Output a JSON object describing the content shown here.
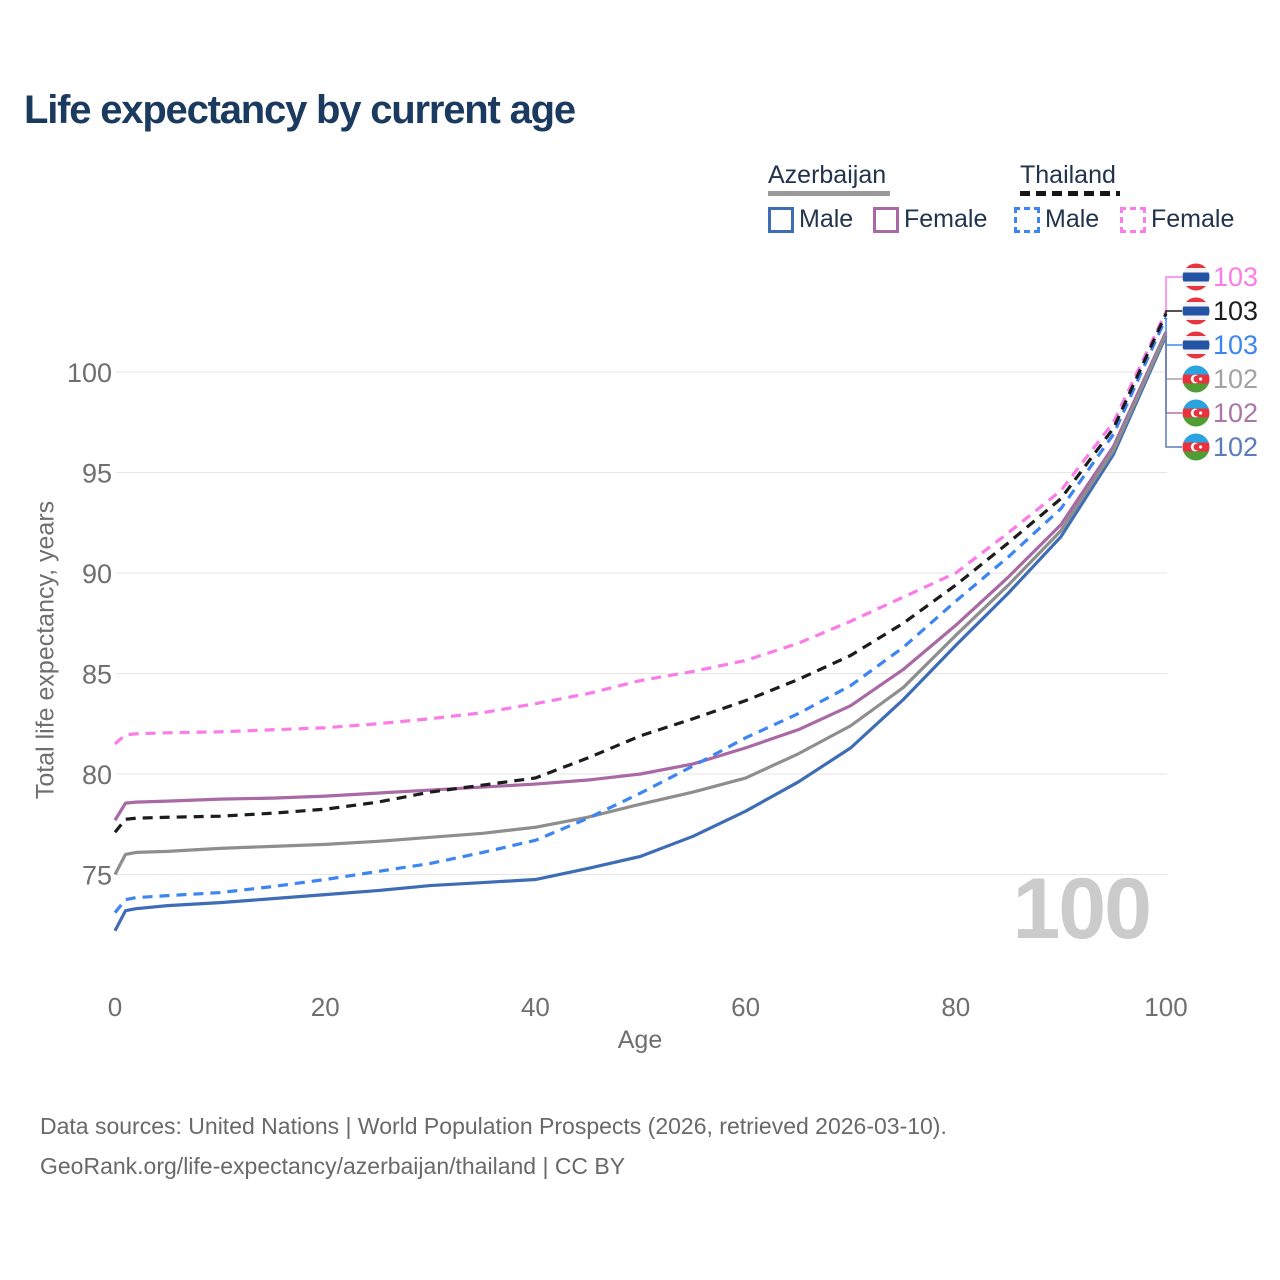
{
  "title": "Life expectancy by current age",
  "legend": {
    "groups": [
      {
        "label": "Azerbaijan",
        "line_style": "solid",
        "underline_color": "#9a9a9a",
        "items": [
          {
            "label": "Male",
            "color": "#3e6db5",
            "dashed": false
          },
          {
            "label": "Female",
            "color": "#a869a5",
            "dashed": false
          }
        ]
      },
      {
        "label": "Thailand",
        "line_style": "dashed",
        "underline_color": "#161616",
        "items": [
          {
            "label": "Male",
            "color": "#3d85f2",
            "dashed": true
          },
          {
            "label": "Female",
            "color": "#fb7ce8",
            "dashed": true
          }
        ]
      }
    ]
  },
  "chart_data": {
    "type": "line",
    "title": "Life expectancy by current age",
    "xlabel": "Age",
    "ylabel": "Total life expectancy, years",
    "xticks": [
      0,
      20,
      40,
      60,
      80,
      100
    ],
    "yticks": [
      75,
      80,
      85,
      90,
      95,
      100
    ],
    "xlim": [
      0,
      100
    ],
    "ylim": [
      72,
      103.5
    ],
    "grid": "horizontal",
    "x": [
      0,
      1,
      2,
      5,
      10,
      15,
      20,
      25,
      30,
      35,
      40,
      45,
      50,
      55,
      60,
      65,
      70,
      75,
      80,
      85,
      90,
      95,
      100
    ],
    "series": [
      {
        "id": "az_male",
        "name": "Azerbaijan — Male",
        "color": "#3e6db5",
        "dashed": false,
        "values": [
          72.2,
          73.2,
          73.3,
          73.45,
          73.6,
          73.8,
          74.0,
          74.2,
          74.45,
          74.6,
          74.75,
          75.3,
          75.9,
          76.9,
          78.15,
          79.6,
          81.3,
          83.7,
          86.4,
          89.0,
          91.8,
          95.9,
          101.8
        ]
      },
      {
        "id": "az_female",
        "name": "Azerbaijan — Female",
        "color": "#a869a5",
        "dashed": false,
        "values": [
          77.7,
          78.55,
          78.6,
          78.65,
          78.75,
          78.8,
          78.9,
          79.05,
          79.2,
          79.35,
          79.5,
          79.7,
          80.0,
          80.5,
          81.3,
          82.2,
          83.4,
          85.2,
          87.4,
          89.8,
          92.4,
          96.3,
          102.0
        ]
      },
      {
        "id": "az_both",
        "name": "Azerbaijan — Both sexes",
        "color": "#8e8e8e",
        "dashed": false,
        "values": [
          75.0,
          76.0,
          76.1,
          76.15,
          76.3,
          76.4,
          76.5,
          76.65,
          76.85,
          77.05,
          77.35,
          77.85,
          78.5,
          79.1,
          79.8,
          81.0,
          82.4,
          84.3,
          86.9,
          89.4,
          92.1,
          96.1,
          101.9
        ]
      },
      {
        "id": "th_male",
        "name": "Thailand — Male",
        "color": "#3d85f2",
        "dashed": true,
        "values": [
          73.1,
          73.75,
          73.85,
          73.95,
          74.1,
          74.4,
          74.75,
          75.15,
          75.55,
          76.1,
          76.7,
          77.8,
          79.05,
          80.4,
          81.8,
          83.0,
          84.4,
          86.3,
          88.6,
          90.8,
          93.2,
          96.9,
          102.7
        ]
      },
      {
        "id": "th_female",
        "name": "Thailand — Female",
        "color": "#fb7ce8",
        "dashed": true,
        "values": [
          81.5,
          81.95,
          82.0,
          82.05,
          82.1,
          82.2,
          82.3,
          82.5,
          82.75,
          83.05,
          83.5,
          84.0,
          84.65,
          85.1,
          85.65,
          86.5,
          87.6,
          88.8,
          90.0,
          92.0,
          94.1,
          97.5,
          103.0
        ]
      },
      {
        "id": "th_both",
        "name": "Thailand — Both sexes",
        "color": "#1c1c1c",
        "dashed": true,
        "values": [
          77.1,
          77.75,
          77.8,
          77.85,
          77.9,
          78.05,
          78.25,
          78.6,
          79.1,
          79.45,
          79.8,
          80.8,
          81.9,
          82.75,
          83.65,
          84.7,
          85.9,
          87.5,
          89.4,
          91.5,
          93.7,
          97.2,
          102.9
        ]
      }
    ]
  },
  "end_labels": [
    {
      "series": "th_female",
      "value": "103",
      "color": "#fb7ce8",
      "flag": "thailand"
    },
    {
      "series": "th_both",
      "value": "103",
      "color": "#1c1c1c",
      "flag": "thailand"
    },
    {
      "series": "th_male",
      "value": "103",
      "color": "#3d85f2",
      "flag": "thailand"
    },
    {
      "series": "az_both",
      "value": "102",
      "color": "#a3a3a3",
      "flag": "azerbaijan"
    },
    {
      "series": "az_female",
      "value": "102",
      "color": "#ab76a8",
      "flag": "azerbaijan"
    },
    {
      "series": "az_male",
      "value": "102",
      "color": "#5b7cba",
      "flag": "azerbaijan"
    }
  ],
  "watermark": "100",
  "footer": {
    "line1": "Data sources: United Nations | World Population Prospects (2026, retrieved 2026-03-10).",
    "line2": "GeoRank.org/life-expectancy/azerbaijan/thailand | CC BY"
  }
}
